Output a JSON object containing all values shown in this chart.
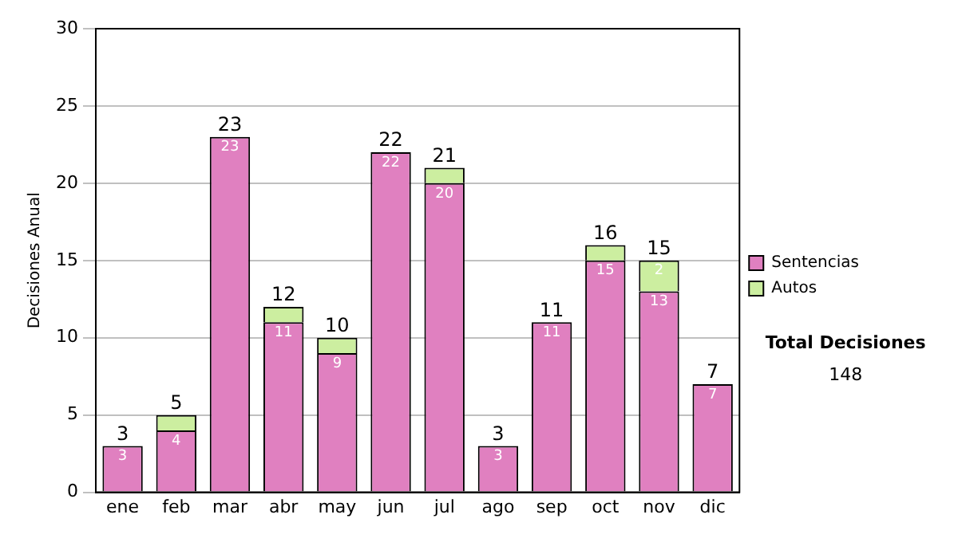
{
  "chart_data": {
    "type": "bar",
    "stacked": true,
    "ylabel": "Decisiones Anual",
    "categories": [
      "ene",
      "feb",
      "mar",
      "abr",
      "may",
      "jun",
      "jul",
      "ago",
      "sep",
      "oct",
      "nov",
      "dic"
    ],
    "series": [
      {
        "name": "Sentencias",
        "color": "#e080c0",
        "values": [
          3,
          4,
          23,
          11,
          9,
          22,
          20,
          3,
          11,
          15,
          13,
          7
        ],
        "value_labels": [
          "3",
          "4",
          "23",
          "11",
          "9",
          "22",
          "20",
          "3",
          "11",
          "15",
          "13",
          "7"
        ]
      },
      {
        "name": "Autos",
        "color": "#cceea0",
        "values": [
          0,
          1,
          0,
          1,
          1,
          0,
          1,
          0,
          0,
          1,
          2,
          0
        ],
        "value_labels": [
          null,
          null,
          null,
          null,
          null,
          null,
          null,
          null,
          null,
          null,
          "2",
          null
        ]
      }
    ],
    "totals": [
      "3",
      "5",
      "23",
      "12",
      "10",
      "22",
      "21",
      "3",
      "11",
      "16",
      "15",
      "7"
    ],
    "ylim": [
      0,
      30
    ],
    "yticks": [
      0,
      5,
      10,
      15,
      20,
      25,
      30
    ],
    "grid": "y",
    "legend": "right",
    "annotations": [
      "Total Decisiones",
      "148"
    ]
  }
}
